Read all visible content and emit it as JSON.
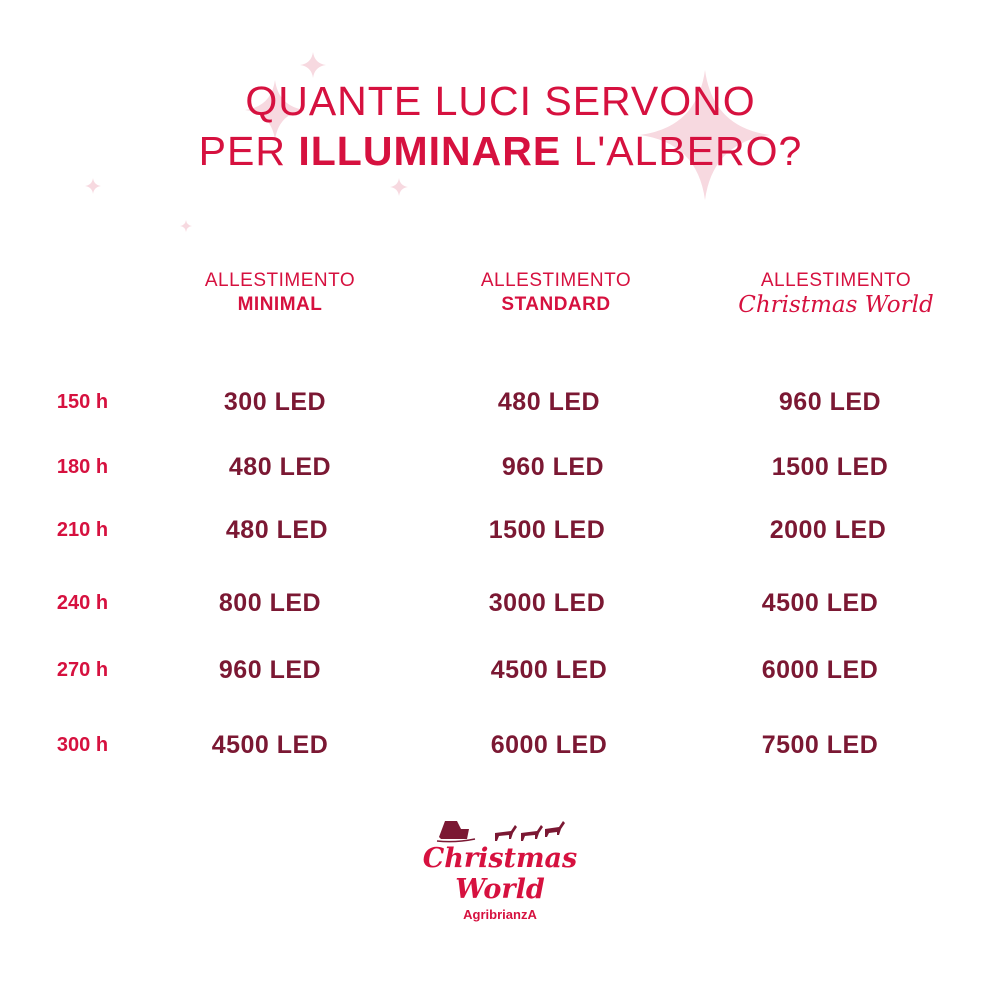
{
  "colors": {
    "accent": "#d6113f",
    "value": "#7b1833",
    "sparkle": "#f7d9e0"
  },
  "title": {
    "line1": "QUANTE LUCI SERVONO",
    "line2_prefix": "PER ",
    "line2_bold": "ILLUMINARE",
    "line2_suffix": " L'ALBERO?"
  },
  "columns": [
    {
      "line1": "ALLESTIMENTO",
      "line2": "MINIMAL"
    },
    {
      "line1": "ALLESTIMENTO",
      "line2": "STANDARD"
    },
    {
      "line1": "ALLESTIMENTO",
      "line2": "Christmas World"
    }
  ],
  "rows": [
    {
      "height": "150 h",
      "values": [
        "300 LED",
        "480 LED",
        "960 LED"
      ]
    },
    {
      "height": "180 h",
      "values": [
        "480 LED",
        "960 LED",
        "1500 LED"
      ]
    },
    {
      "height": "210 h",
      "values": [
        "480 LED",
        "1500 LED",
        "2000 LED"
      ]
    },
    {
      "height": "240 h",
      "values": [
        "800 LED",
        "3000 LED",
        "4500 LED"
      ]
    },
    {
      "height": "270 h",
      "values": [
        "960 LED",
        "4500 LED",
        "6000 LED"
      ]
    },
    {
      "height": "300 h",
      "values": [
        "4500 LED",
        "6000 LED",
        "7500 LED"
      ]
    }
  ],
  "logo": {
    "line1": "Christmas",
    "line2": "World",
    "sub": "AgribrianzA",
    "icon": "santa-sleigh-reindeer-icon"
  }
}
